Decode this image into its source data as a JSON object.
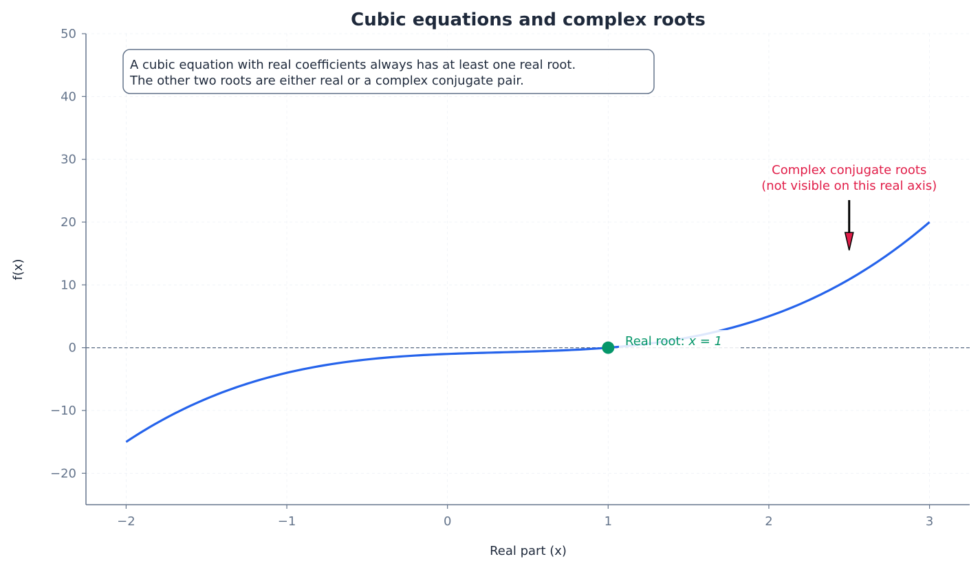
{
  "chart_data": {
    "type": "line",
    "title": "Cubic equations and complex roots",
    "xlabel": "Real part (x)",
    "ylabel": "f(x)",
    "xlim": [
      -2.25,
      3.25
    ],
    "ylim": [
      -25,
      50
    ],
    "xticks": [
      -2,
      -1,
      0,
      1,
      2,
      3
    ],
    "xtick_labels": [
      "−2",
      "−1",
      "0",
      "1",
      "2",
      "3"
    ],
    "yticks": [
      -20,
      -10,
      0,
      10,
      20,
      30,
      40,
      50
    ],
    "ytick_labels": [
      "−20",
      "−10",
      "0",
      "10",
      "20",
      "30",
      "40",
      "50"
    ],
    "grid": true,
    "series": [
      {
        "function": "(x-1)(x^2+1)",
        "x_range": [
          -2,
          3
        ],
        "color": "#2563eb",
        "x": [
          -2,
          -1.5,
          -1,
          -0.5,
          0,
          0.5,
          1,
          1.5,
          2,
          2.5,
          3
        ],
        "y": [
          -15,
          -8.125,
          -4,
          -1.875,
          -1,
          -0.625,
          0,
          1.625,
          5,
          10.875,
          20
        ]
      }
    ],
    "reference_line": {
      "y": 0,
      "style": "dashed",
      "color": "#64748b"
    },
    "real_root": {
      "x": 1,
      "y": 0,
      "label": "Real root: ",
      "label_math": "x = 1",
      "color": "#059669"
    },
    "annotation": {
      "lines": [
        "Complex conjugate roots",
        "(not visible on this real axis)"
      ],
      "color": "#e11d48",
      "arrow_from": [
        2.5,
        23.5
      ],
      "arrow_to": [
        2.5,
        15.5
      ]
    },
    "info_box": {
      "lines": [
        "A cubic equation with real coefficients always has at least one real root.",
        "The other two roots are either real or a complex conjugate pair."
      ]
    }
  }
}
